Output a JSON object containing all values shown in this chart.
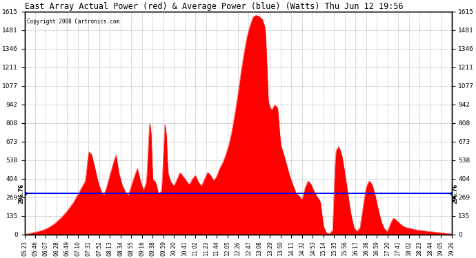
{
  "title": "East Array Actual Power (red) & Average Power (blue) (Watts) Thu Jun 12 19:56",
  "copyright": "Copyright 2008 Cartronics.com",
  "avg_power": 296.76,
  "ylim": [
    0.0,
    1615.2
  ],
  "yticks": [
    0.0,
    134.6,
    269.2,
    403.8,
    538.4,
    673.0,
    807.6,
    942.2,
    1076.8,
    1211.4,
    1346.0,
    1480.6,
    1615.2
  ],
  "line_color": "blue",
  "fill_color": "red",
  "background_color": "white",
  "grid_color": "#888888",
  "x_labels": [
    "05:23",
    "05:46",
    "06:07",
    "06:28",
    "06:49",
    "07:10",
    "07:31",
    "07:52",
    "08:13",
    "08:34",
    "08:55",
    "09:16",
    "09:38",
    "09:59",
    "10:20",
    "10:41",
    "11:02",
    "11:23",
    "11:44",
    "12:05",
    "12:26",
    "12:47",
    "13:08",
    "13:29",
    "13:50",
    "14:11",
    "14:32",
    "14:53",
    "15:14",
    "15:35",
    "15:56",
    "16:17",
    "16:38",
    "16:59",
    "17:20",
    "17:41",
    "18:02",
    "18:23",
    "18:44",
    "19:05",
    "19:26"
  ],
  "key_points": [
    [
      0,
      0
    ],
    [
      2,
      8
    ],
    [
      4,
      18
    ],
    [
      6,
      30
    ],
    [
      8,
      50
    ],
    [
      10,
      80
    ],
    [
      12,
      120
    ],
    [
      14,
      170
    ],
    [
      16,
      230
    ],
    [
      18,
      310
    ],
    [
      20,
      390
    ],
    [
      21,
      600
    ],
    [
      22,
      580
    ],
    [
      23,
      490
    ],
    [
      24,
      390
    ],
    [
      25,
      320
    ],
    [
      26,
      280
    ],
    [
      27,
      350
    ],
    [
      28,
      430
    ],
    [
      29,
      510
    ],
    [
      30,
      580
    ],
    [
      31,
      440
    ],
    [
      32,
      360
    ],
    [
      33,
      310
    ],
    [
      34,
      280
    ],
    [
      35,
      350
    ],
    [
      36,
      420
    ],
    [
      37,
      480
    ],
    [
      38,
      390
    ],
    [
      39,
      320
    ],
    [
      40,
      380
    ],
    [
      41,
      820
    ],
    [
      41.5,
      750
    ],
    [
      42,
      400
    ],
    [
      43,
      380
    ],
    [
      44,
      290
    ],
    [
      45,
      320
    ],
    [
      46,
      800
    ],
    [
      46.5,
      750
    ],
    [
      47,
      450
    ],
    [
      48,
      380
    ],
    [
      49,
      350
    ],
    [
      50,
      400
    ],
    [
      51,
      450
    ],
    [
      52,
      420
    ],
    [
      53,
      390
    ],
    [
      54,
      360
    ],
    [
      55,
      400
    ],
    [
      56,
      430
    ],
    [
      57,
      380
    ],
    [
      58,
      350
    ],
    [
      59,
      400
    ],
    [
      60,
      450
    ],
    [
      61,
      430
    ],
    [
      62,
      390
    ],
    [
      63,
      420
    ],
    [
      64,
      480
    ],
    [
      65,
      520
    ],
    [
      66,
      580
    ],
    [
      67,
      650
    ],
    [
      68,
      750
    ],
    [
      69,
      880
    ],
    [
      70,
      1020
    ],
    [
      71,
      1180
    ],
    [
      72,
      1320
    ],
    [
      73,
      1440
    ],
    [
      74,
      1520
    ],
    [
      75,
      1580
    ],
    [
      76,
      1590
    ],
    [
      77,
      1580
    ],
    [
      78,
      1560
    ],
    [
      79,
      1490
    ],
    [
      80,
      950
    ],
    [
      81,
      900
    ],
    [
      82,
      940
    ],
    [
      83,
      920
    ],
    [
      84,
      650
    ],
    [
      85,
      580
    ],
    [
      86,
      500
    ],
    [
      87,
      420
    ],
    [
      88,
      360
    ],
    [
      89,
      300
    ],
    [
      90,
      280
    ],
    [
      91,
      250
    ],
    [
      92,
      340
    ],
    [
      93,
      390
    ],
    [
      94,
      360
    ],
    [
      95,
      310
    ],
    [
      96,
      270
    ],
    [
      97,
      240
    ],
    [
      98,
      60
    ],
    [
      99,
      10
    ],
    [
      100,
      5
    ],
    [
      101,
      30
    ],
    [
      102,
      600
    ],
    [
      103,
      640
    ],
    [
      104,
      580
    ],
    [
      105,
      450
    ],
    [
      106,
      300
    ],
    [
      107,
      150
    ],
    [
      108,
      50
    ],
    [
      109,
      20
    ],
    [
      110,
      50
    ],
    [
      111,
      200
    ],
    [
      112,
      340
    ],
    [
      113,
      390
    ],
    [
      114,
      360
    ],
    [
      115,
      280
    ],
    [
      116,
      180
    ],
    [
      117,
      90
    ],
    [
      118,
      40
    ],
    [
      119,
      20
    ],
    [
      120,
      80
    ],
    [
      121,
      120
    ],
    [
      122,
      100
    ],
    [
      123,
      80
    ],
    [
      124,
      60
    ],
    [
      125,
      50
    ],
    [
      126,
      45
    ],
    [
      127,
      40
    ],
    [
      128,
      35
    ],
    [
      129,
      30
    ],
    [
      130,
      28
    ],
    [
      131,
      25
    ],
    [
      132,
      22
    ],
    [
      133,
      20
    ],
    [
      134,
      18
    ],
    [
      135,
      15
    ],
    [
      136,
      13
    ],
    [
      137,
      10
    ],
    [
      138,
      8
    ],
    [
      139,
      5
    ],
    [
      140,
      3
    ]
  ]
}
